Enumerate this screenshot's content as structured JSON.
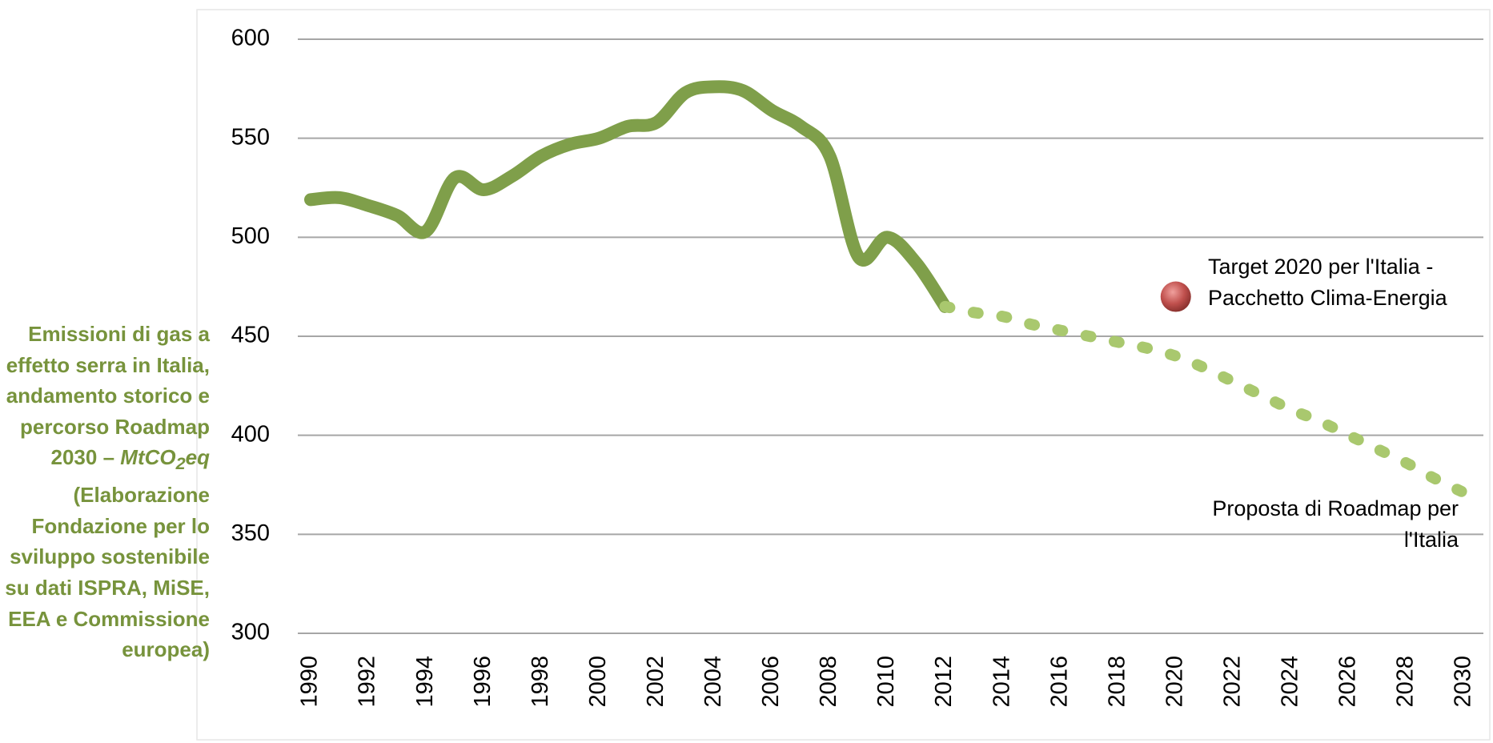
{
  "chart_data": {
    "type": "line",
    "title": "Emissioni di gas a effetto serra in Italia, andamento storico e percorso Roadmap 2030 –",
    "unit": {
      "pre": "MtCO",
      "sub": "2",
      "post": "eq"
    },
    "source": "(Elaborazione Fondazione per lo sviluppo sostenibile su dati ISPRA, MiSE, EEA e Commissione europea)",
    "x": [
      1990,
      1991,
      1992,
      1993,
      1994,
      1995,
      1996,
      1997,
      1998,
      1999,
      2000,
      2001,
      2002,
      2003,
      2004,
      2005,
      2006,
      2007,
      2008,
      2009,
      2010,
      2011,
      2012,
      2013,
      2014,
      2015,
      2016,
      2017,
      2018,
      2019,
      2020,
      2021,
      2022,
      2023,
      2024,
      2025,
      2026,
      2027,
      2028,
      2029,
      2030
    ],
    "series": [
      {
        "color": "#7f9f4a",
        "style": "solid",
        "values": [
          519,
          520,
          516,
          511,
          503,
          530,
          524,
          531,
          541,
          547,
          550,
          556,
          558,
          573,
          576,
          574,
          564,
          556,
          541,
          490,
          500,
          487,
          465,
          null,
          null,
          null,
          null,
          null,
          null,
          null,
          null,
          null,
          null,
          null,
          null,
          null,
          null,
          null,
          null,
          null,
          null
        ]
      },
      {
        "name": "Proposta di Roadmap per l'Italia",
        "color": "#a9c86e",
        "style": "dotted",
        "values": [
          null,
          null,
          null,
          null,
          null,
          null,
          null,
          null,
          null,
          null,
          null,
          null,
          null,
          null,
          null,
          null,
          null,
          null,
          null,
          null,
          null,
          null,
          465,
          462,
          460,
          456,
          453,
          450,
          447,
          444,
          440,
          434,
          427,
          420,
          413,
          407,
          400,
          393,
          386,
          378,
          371
        ]
      }
    ],
    "points": [
      {
        "x": 2020,
        "y": 470,
        "color": "#c0504d",
        "label": "Target 2020 per l'Italia - Pacchetto Clima-Energia"
      }
    ],
    "xlim": [
      1990,
      2030
    ],
    "xticks": [
      1990,
      1992,
      1994,
      1996,
      1998,
      2000,
      2002,
      2004,
      2006,
      2008,
      2010,
      2012,
      2014,
      2016,
      2018,
      2020,
      2022,
      2024,
      2026,
      2028,
      2030
    ],
    "ylim": [
      300,
      600
    ],
    "yticks": [
      300,
      350,
      400,
      450,
      500,
      550,
      600
    ],
    "grid": true
  }
}
